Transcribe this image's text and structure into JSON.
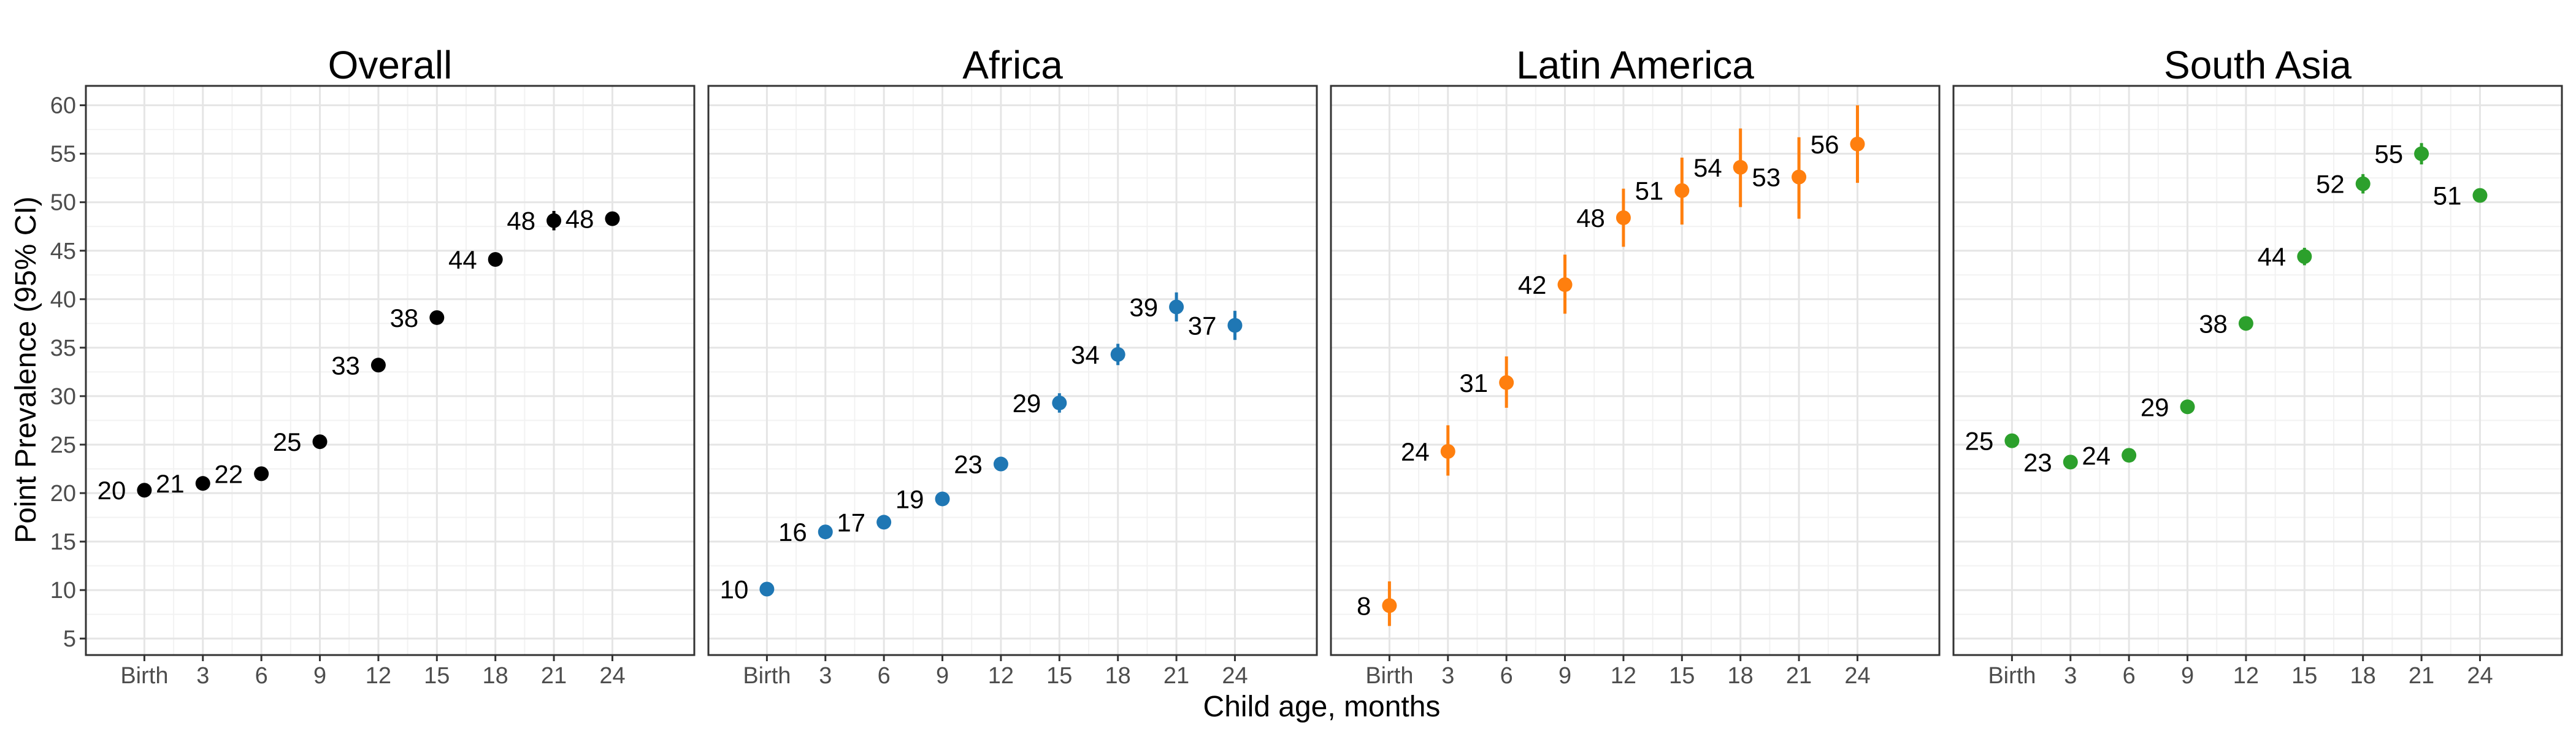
{
  "chart_data": [
    {
      "type": "scatter",
      "title": "Overall",
      "color": "#000000",
      "x": [
        "Birth",
        "3",
        "6",
        "9",
        "12",
        "15",
        "18",
        "21",
        "24"
      ],
      "y": [
        20.3,
        21.0,
        22.0,
        25.3,
        33.2,
        38.1,
        44.1,
        48.1,
        48.3
      ],
      "ci_low": [
        19.7,
        20.4,
        21.4,
        24.7,
        32.6,
        37.5,
        43.4,
        47.1,
        47.6
      ],
      "ci_high": [
        20.9,
        21.6,
        22.6,
        25.9,
        33.8,
        38.7,
        44.8,
        49.1,
        49.0
      ],
      "labels": [
        "20",
        "21",
        "22",
        "25",
        "33",
        "38",
        "44",
        "48",
        "48"
      ]
    },
    {
      "type": "scatter",
      "title": "Africa",
      "color": "#1f77b4",
      "x": [
        "Birth",
        "3",
        "6",
        "9",
        "12",
        "15",
        "18",
        "21",
        "24"
      ],
      "y": [
        10.1,
        16.0,
        17.0,
        19.4,
        23.0,
        29.3,
        34.3,
        39.2,
        37.3
      ],
      "ci_low": [
        9.5,
        15.4,
        16.4,
        18.7,
        22.3,
        28.3,
        33.2,
        37.7,
        35.8
      ],
      "ci_high": [
        10.7,
        16.6,
        17.6,
        20.1,
        23.7,
        30.3,
        35.4,
        40.7,
        38.8
      ],
      "labels": [
        "10",
        "16",
        "17",
        "19",
        "23",
        "29",
        "34",
        "39",
        "37"
      ]
    },
    {
      "type": "scatter",
      "title": "Latin America",
      "color": "#ff7f0e",
      "x": [
        "Birth",
        "3",
        "6",
        "9",
        "12",
        "15",
        "18",
        "21",
        "24"
      ],
      "y": [
        8.4,
        24.3,
        31.4,
        41.5,
        48.4,
        51.2,
        53.6,
        52.6,
        56.0
      ],
      "ci_low": [
        6.3,
        21.8,
        28.8,
        38.5,
        45.4,
        47.7,
        49.5,
        48.3,
        52.0
      ],
      "ci_high": [
        10.9,
        27.0,
        34.1,
        44.6,
        51.4,
        54.6,
        57.6,
        56.7,
        60.0
      ],
      "labels": [
        "8",
        "24",
        "31",
        "42",
        "48",
        "51",
        "54",
        "53",
        "56"
      ]
    },
    {
      "type": "scatter",
      "title": "South Asia",
      "color": "#2ca02c",
      "x": [
        "Birth",
        "3",
        "6",
        "9",
        "12",
        "15",
        "18",
        "21",
        "24"
      ],
      "y": [
        25.4,
        23.2,
        23.9,
        28.9,
        37.5,
        44.4,
        51.9,
        55.0,
        50.7
      ],
      "ci_low": [
        24.8,
        22.6,
        23.3,
        28.3,
        36.8,
        43.5,
        50.9,
        53.9,
        50.1
      ],
      "ci_high": [
        26.0,
        23.8,
        24.5,
        29.5,
        38.2,
        45.3,
        52.9,
        56.1,
        51.3
      ],
      "labels": [
        "25",
        "23",
        "24",
        "29",
        "38",
        "44",
        "52",
        "55",
        "51"
      ]
    }
  ],
  "axes": {
    "ylabel": "Point Prevalence (95% CI)",
    "xlabel": "Child age, months",
    "ylim": [
      3.3,
      62
    ],
    "yticks": [
      5,
      10,
      15,
      20,
      25,
      30,
      35,
      40,
      45,
      50,
      55,
      60
    ],
    "ytick_labels": [
      "5",
      "10",
      "15",
      "20",
      "25",
      "30",
      "35",
      "40",
      "45",
      "50",
      "55",
      "60"
    ],
    "xtick_labels": [
      "Birth",
      "3",
      "6",
      "9",
      "12",
      "15",
      "18",
      "21",
      "24"
    ],
    "grid": true,
    "panel_background": "#ffffff",
    "grid_color": "#e5e5e5",
    "border_color": "#333333"
  }
}
